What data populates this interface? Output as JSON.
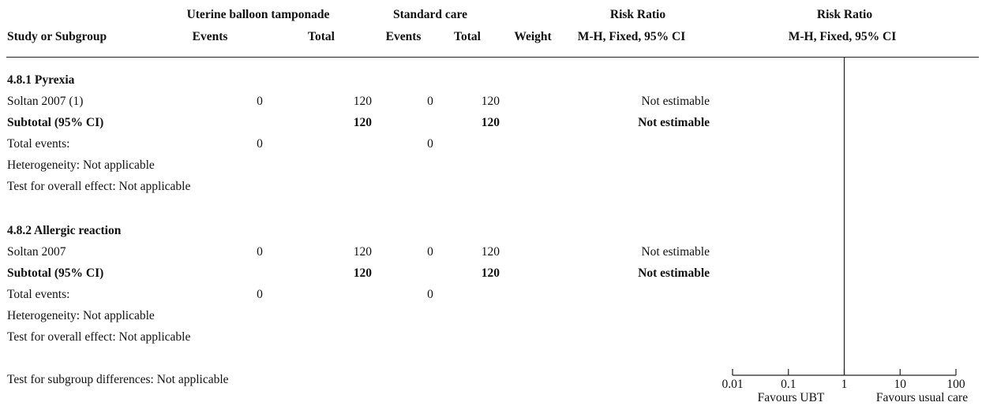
{
  "header": {
    "group1": "Uterine balloon tamponade",
    "group2": "Standard care",
    "rr_top": "Risk Ratio",
    "rr_plot_top": "Risk Ratio",
    "study": "Study or Subgroup",
    "events1": "Events",
    "total1": "Total",
    "events2": "Events",
    "total2": "Total",
    "weight": "Weight",
    "rr_method": "M-H, Fixed, 95% CI",
    "rr_plot_method": "M-H, Fixed, 95% CI"
  },
  "subgroups": [
    {
      "title": "4.8.1 Pyrexia",
      "study": {
        "name": "Soltan 2007 (1)",
        "events1": "0",
        "total1": "120",
        "events2": "0",
        "total2": "120",
        "effect": "Not estimable"
      },
      "subtotal": {
        "label": "Subtotal (95% CI)",
        "total1": "120",
        "total2": "120",
        "effect": "Not estimable"
      },
      "total_events": {
        "label": "Total events:",
        "events1": "0",
        "events2": "0"
      },
      "heterogeneity": "Heterogeneity: Not applicable",
      "overall": "Test for overall effect: Not applicable"
    },
    {
      "title": "4.8.2 Allergic reaction",
      "study": {
        "name": "Soltan 2007",
        "events1": "0",
        "total1": "120",
        "events2": "0",
        "total2": "120",
        "effect": "Not estimable"
      },
      "subtotal": {
        "label": "Subtotal (95% CI)",
        "total1": "120",
        "total2": "120",
        "effect": "Not estimable"
      },
      "total_events": {
        "label": "Total events:",
        "events1": "0",
        "events2": "0"
      },
      "heterogeneity": "Heterogeneity: Not applicable",
      "overall": "Test for overall effect: Not applicable"
    }
  ],
  "footer": {
    "subgroup_diff": "Test for subgroup differences: Not applicable"
  },
  "chart_data": {
    "type": "forest",
    "scale": "log",
    "xlim": [
      0.01,
      100
    ],
    "null_line": 1,
    "ticks": [
      0.01,
      0.1,
      1,
      10,
      100
    ],
    "tick_labels": [
      "0.01",
      "0.1",
      "1",
      "10",
      "100"
    ],
    "favours_left": "Favours UBT",
    "favours_right": "Favours usual care",
    "points": []
  }
}
